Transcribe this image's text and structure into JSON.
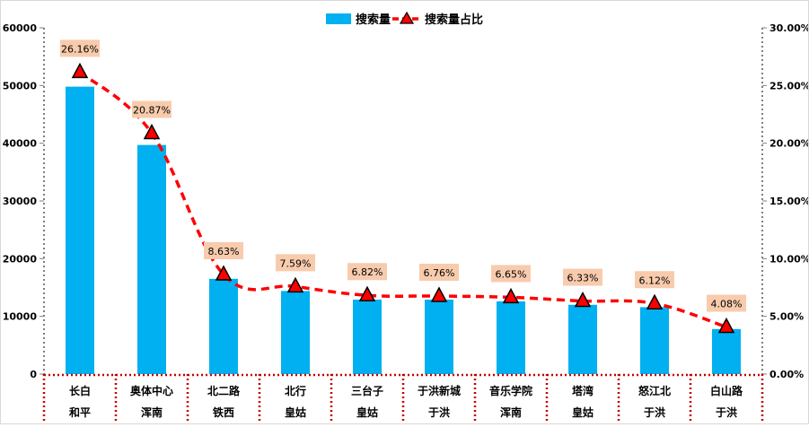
{
  "chart_data": {
    "type": "bar",
    "title": "",
    "xlabel": "",
    "ylabel": "",
    "categories": [
      [
        "长白",
        "和平"
      ],
      [
        "奥体中心",
        "浑南"
      ],
      [
        "北二路",
        "铁西"
      ],
      [
        "北行",
        "皇姑"
      ],
      [
        "三台子",
        "皇姑"
      ],
      [
        "于洪新城",
        "于洪"
      ],
      [
        "音乐学院",
        "浑南"
      ],
      [
        "塔湾",
        "皇姑"
      ],
      [
        "怒江北",
        "于洪"
      ],
      [
        "白山路",
        "于洪"
      ]
    ],
    "series": [
      {
        "name": "搜索量",
        "type": "bar",
        "axis": "left",
        "color": "#00b0f0",
        "values": [
          49800,
          39700,
          16500,
          14400,
          12900,
          12900,
          12600,
          12000,
          11600,
          7800
        ]
      },
      {
        "name": "搜索量占比",
        "type": "line",
        "axis": "right",
        "color": "#ff0000",
        "values": [
          26.16,
          20.87,
          8.63,
          7.59,
          6.82,
          6.76,
          6.65,
          6.33,
          6.12,
          4.08
        ],
        "labels": [
          "26.16%",
          "20.87%",
          "8.63%",
          "7.59%",
          "6.82%",
          "6.76%",
          "6.65%",
          "6.33%",
          "6.12%",
          "4.08%"
        ]
      }
    ],
    "left_axis": {
      "ylim": [
        0,
        60000
      ],
      "ticks": [
        "0",
        "10000",
        "20000",
        "30000",
        "40000",
        "50000",
        "60000"
      ]
    },
    "right_axis": {
      "ylim": [
        0,
        30
      ],
      "ticks": [
        "0.00%",
        "5.00%",
        "10.00%",
        "15.00%",
        "20.00%",
        "25.00%",
        "30.00%"
      ]
    },
    "legend": {
      "position": "top-center",
      "items": [
        "搜索量",
        "搜索量占比"
      ]
    },
    "label_bg": "#f8cbad",
    "grid": false
  }
}
